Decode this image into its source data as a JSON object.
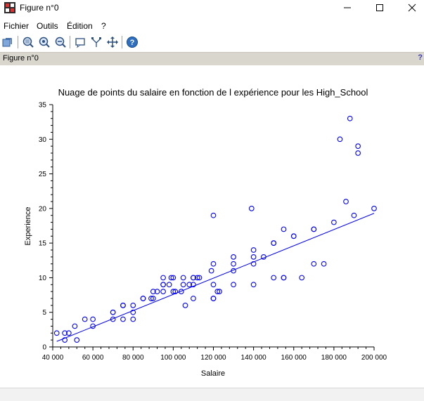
{
  "window": {
    "title": "Figure n°0",
    "controls": [
      "minimize",
      "maximize",
      "close"
    ]
  },
  "menu": {
    "items": [
      "Fichier",
      "Outils",
      "Édition",
      "?"
    ]
  },
  "toolbar": {
    "icons": [
      "rotate-icon",
      "zoom-in-icon",
      "zoom-out-icon",
      "zoom-reset-icon",
      "datatip-icon",
      "edit-axes-icon",
      "pan-icon",
      "help-icon"
    ]
  },
  "panel": {
    "title": "Figure n°0",
    "help": "?"
  },
  "colors": {
    "series": "#0000ff",
    "panel_bg": "#d9d6ce"
  },
  "chart_data": {
    "type": "scatter",
    "title": "Nuage de points du salaire en fonction de l expérience pour les High_School",
    "xlabel": "Salaire",
    "ylabel": "Experience",
    "xlim": [
      40000,
      200000
    ],
    "ylim": [
      0,
      35
    ],
    "xticks": [
      40000,
      60000,
      80000,
      100000,
      120000,
      140000,
      160000,
      180000,
      200000
    ],
    "xtick_labels": [
      "40 000",
      "60 000",
      "80 000",
      "100 000",
      "120 000",
      "140 000",
      "160 000",
      "180 000",
      "200 000"
    ],
    "yticks": [
      0,
      5,
      10,
      15,
      20,
      25,
      30,
      35
    ],
    "ytick_labels": [
      "0",
      "5",
      "10",
      "15",
      "20",
      "25",
      "30",
      "35"
    ],
    "grid": false,
    "series": [
      {
        "marker": "circle",
        "color": "#0000ff",
        "x": [
          42000,
          46000,
          46000,
          48000,
          51000,
          52000,
          56000,
          60000,
          60000,
          70000,
          70000,
          70000,
          75000,
          75000,
          75000,
          80000,
          80000,
          80000,
          85000,
          85000,
          89000,
          90000,
          90000,
          92000,
          95000,
          95000,
          95000,
          95000,
          98000,
          99000,
          100000,
          100000,
          101000,
          104000,
          105000,
          105000,
          106000,
          108000,
          110000,
          110000,
          110000,
          110000,
          112000,
          113000,
          119000,
          120000,
          120000,
          120000,
          120000,
          120000,
          122000,
          123000,
          130000,
          130000,
          130000,
          130000,
          139000,
          140000,
          140000,
          140000,
          140000,
          145000,
          150000,
          150000,
          150000,
          155000,
          155000,
          155000,
          160000,
          160000,
          164000,
          170000,
          170000,
          170000,
          175000,
          180000,
          183000,
          186000,
          188000,
          190000,
          192000,
          192000,
          200000
        ],
        "y": [
          2,
          1,
          2,
          2,
          3,
          1,
          4,
          3,
          4,
          4,
          5,
          5,
          4,
          6,
          6,
          4,
          5,
          6,
          7,
          7,
          7,
          7,
          8,
          8,
          8,
          9,
          9,
          10,
          9,
          10,
          8,
          10,
          8,
          8,
          9,
          10,
          6,
          9,
          7,
          9,
          10,
          10,
          10,
          10,
          11,
          12,
          9,
          7,
          7,
          19,
          8,
          8,
          9,
          11,
          12,
          13,
          20,
          9,
          12,
          13,
          14,
          13,
          10,
          15,
          15,
          10,
          10,
          17,
          16,
          16,
          10,
          12,
          17,
          17,
          12,
          18,
          30,
          21,
          33,
          19,
          29,
          28,
          20
        ]
      }
    ],
    "regression_line": {
      "x": [
        42000,
        200000
      ],
      "y": [
        0.8,
        19.3
      ]
    }
  }
}
